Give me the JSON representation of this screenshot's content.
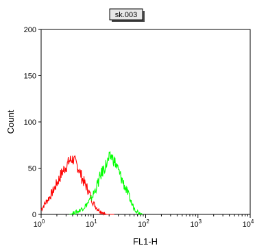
{
  "chart_data": {
    "type": "histogram",
    "title": "sk.003",
    "xlabel": "FL1-H",
    "ylabel": "Count",
    "x_scale": "log",
    "xlim": [
      1,
      10000
    ],
    "ylim": [
      0,
      200
    ],
    "y_ticks": [
      0,
      50,
      100,
      150,
      200
    ],
    "x_ticks": [
      {
        "base": "10",
        "exp": "0"
      },
      {
        "base": "10",
        "exp": "1"
      },
      {
        "base": "10",
        "exp": "2"
      },
      {
        "base": "10",
        "exp": "3"
      },
      {
        "base": "10",
        "exp": "4"
      }
    ],
    "series": [
      {
        "color": "#ff0000",
        "x": [
          1,
          1.2,
          1.5,
          1.8,
          2.1,
          2.5,
          3,
          3.5,
          4,
          4.5,
          5,
          5.5,
          6,
          7,
          8,
          9,
          10,
          12,
          14,
          16,
          18,
          20,
          25
        ],
        "y": [
          5,
          12,
          20,
          28,
          36,
          45,
          52,
          58,
          60,
          56,
          52,
          46,
          40,
          32,
          26,
          18,
          12,
          6,
          3,
          1,
          0,
          0,
          0
        ]
      },
      {
        "color": "#00ff00",
        "x": [
          3.5,
          4,
          5,
          6,
          7,
          8,
          9,
          10,
          11,
          12,
          13,
          14,
          16,
          18,
          20,
          22,
          25,
          28,
          30,
          35,
          40,
          45,
          50,
          55,
          60,
          70,
          80,
          90
        ],
        "y": [
          0,
          1,
          3,
          6,
          9,
          13,
          17,
          22,
          27,
          33,
          38,
          43,
          50,
          55,
          60,
          63,
          58,
          52,
          47,
          38,
          30,
          23,
          17,
          11,
          7,
          3,
          1,
          0
        ]
      }
    ]
  }
}
